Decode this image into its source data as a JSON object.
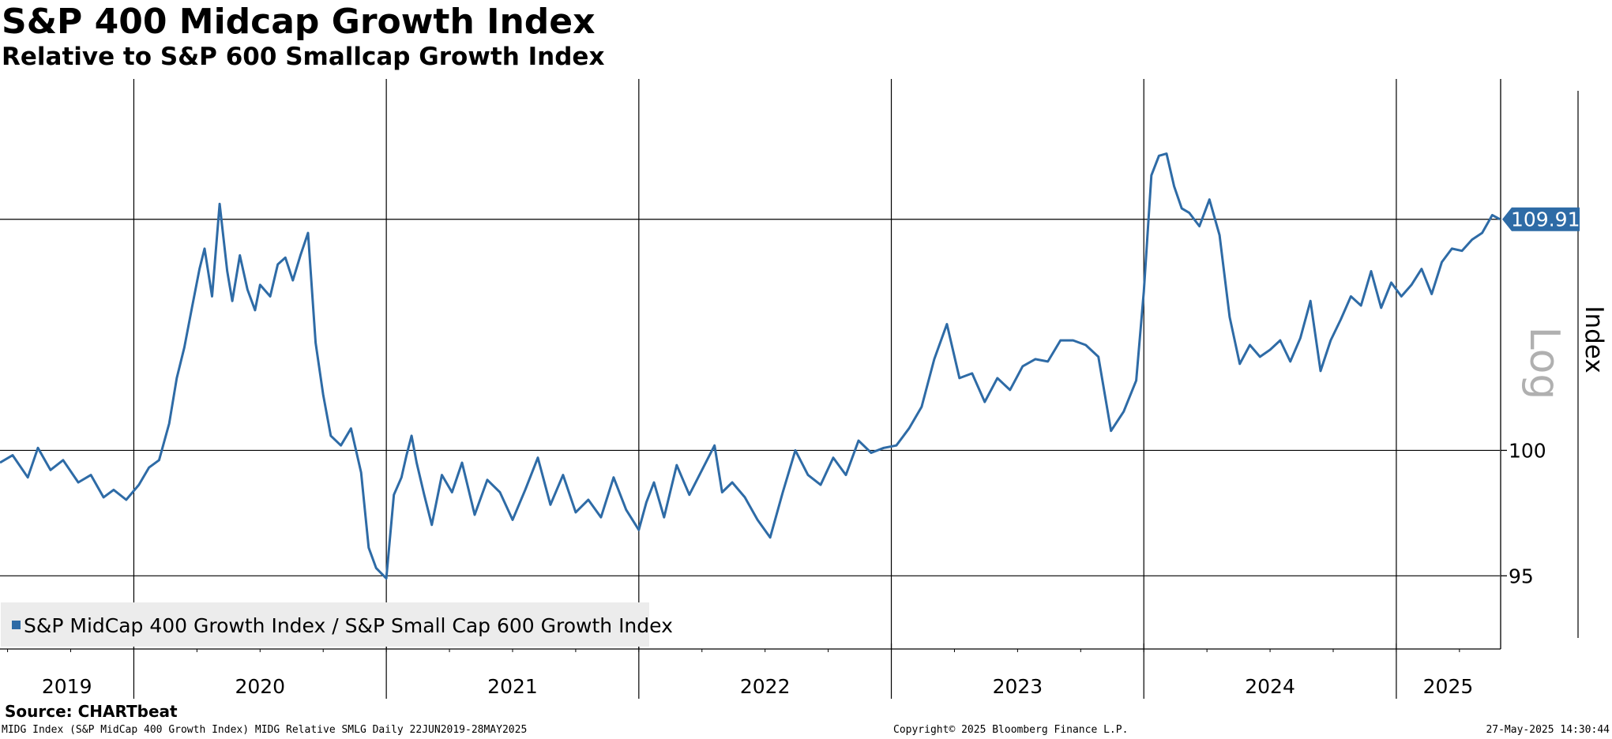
{
  "header": {
    "title": "S&P 400 Midcap Growth Index",
    "subtitle": "Relative to S&P 600 Smallcap Growth Index"
  },
  "footer": {
    "source": "Source: CHARTbeat",
    "left": "MIDG Index (S&P MidCap 400 Growth Index) MIDG Relative SMLG  Daily 22JUN2019-28MAY2025",
    "center": "Copyright© 2025 Bloomberg Finance L.P.",
    "right": "27-May-2025 14:30:44"
  },
  "colors": {
    "series": "#2e6ba6",
    "label_bg": "#2e6ba6",
    "scale_text": "#b0b0b0",
    "legend_bg": "#ececec"
  },
  "chart_data": {
    "type": "line",
    "title": "S&P 400 Midcap Growth Index",
    "subtitle": "Relative to S&P 600 Smallcap Growth Index",
    "ylabel": "Index",
    "scale_label": "Log",
    "yscale": "log",
    "ylim": [
      92.2,
      116.4
    ],
    "yticks": [
      95,
      100
    ],
    "reference_line": 109.91,
    "last_value_label": "109.91",
    "x_range": [
      2019.47,
      2025.41
    ],
    "years": [
      "2019",
      "2020",
      "2021",
      "2022",
      "2023",
      "2024",
      "2025"
    ],
    "year_boundaries": [
      2020.0,
      2021.0,
      2022.0,
      2023.0,
      2024.0,
      2025.0
    ],
    "legend": "S&P MidCap 400 Growth Index / S&P Small Cap 600 Growth Index",
    "series": [
      {
        "name": "S&P MidCap 400 Growth Index / S&P Small Cap 600 Growth Index",
        "x": [
          2019.47,
          2019.52,
          2019.58,
          2019.62,
          2019.67,
          2019.72,
          2019.78,
          2019.83,
          2019.88,
          2019.92,
          2019.97,
          2020.02,
          2020.06,
          2020.1,
          2020.14,
          2020.17,
          2020.2,
          2020.23,
          2020.26,
          2020.28,
          2020.31,
          2020.34,
          2020.37,
          2020.39,
          2020.42,
          2020.45,
          2020.48,
          2020.5,
          2020.54,
          2020.57,
          2020.6,
          2020.63,
          2020.66,
          2020.69,
          2020.72,
          2020.75,
          2020.78,
          2020.82,
          2020.86,
          2020.9,
          2020.93,
          2020.96,
          2021.0,
          2021.03,
          2021.06,
          2021.08,
          2021.1,
          2021.12,
          2021.15,
          2021.18,
          2021.22,
          2021.26,
          2021.3,
          2021.35,
          2021.4,
          2021.45,
          2021.5,
          2021.55,
          2021.6,
          2021.65,
          2021.7,
          2021.75,
          2021.8,
          2021.85,
          2021.9,
          2021.95,
          2022.0,
          2022.03,
          2022.06,
          2022.1,
          2022.15,
          2022.2,
          2022.25,
          2022.3,
          2022.33,
          2022.37,
          2022.42,
          2022.47,
          2022.52,
          2022.57,
          2022.62,
          2022.67,
          2022.72,
          2022.77,
          2022.82,
          2022.87,
          2022.92,
          2022.97,
          2023.02,
          2023.07,
          2023.12,
          2023.17,
          2023.22,
          2023.27,
          2023.32,
          2023.37,
          2023.42,
          2023.47,
          2023.52,
          2023.57,
          2023.62,
          2023.67,
          2023.72,
          2023.77,
          2023.82,
          2023.87,
          2023.92,
          2023.97,
          2024.0,
          2024.03,
          2024.06,
          2024.09,
          2024.12,
          2024.15,
          2024.18,
          2024.22,
          2024.26,
          2024.3,
          2024.34,
          2024.38,
          2024.42,
          2024.46,
          2024.5,
          2024.54,
          2024.58,
          2024.62,
          2024.66,
          2024.7,
          2024.74,
          2024.78,
          2024.82,
          2024.86,
          2024.9,
          2024.94,
          2024.98,
          2025.02,
          2025.06,
          2025.1,
          2025.14,
          2025.18,
          2025.22,
          2025.26,
          2025.3,
          2025.34,
          2025.38,
          2025.41
        ],
        "values": [
          99.5,
          99.8,
          98.9,
          100.1,
          99.2,
          99.6,
          98.7,
          99.0,
          98.1,
          98.4,
          98.0,
          98.6,
          99.3,
          99.6,
          101.1,
          103.0,
          104.3,
          106.0,
          107.7,
          108.6,
          106.5,
          110.6,
          107.6,
          106.3,
          108.3,
          106.8,
          105.9,
          107.0,
          106.5,
          107.9,
          108.2,
          107.2,
          108.3,
          109.3,
          104.5,
          102.3,
          100.6,
          100.2,
          100.9,
          99.1,
          96.1,
          95.3,
          94.9,
          98.2,
          98.9,
          99.8,
          100.6,
          99.5,
          98.2,
          97.0,
          99.0,
          98.3,
          99.5,
          97.4,
          98.8,
          98.3,
          97.2,
          98.4,
          99.7,
          97.8,
          99.0,
          97.5,
          98.0,
          97.3,
          98.9,
          97.6,
          96.8,
          97.9,
          98.7,
          97.3,
          99.4,
          98.2,
          99.2,
          100.2,
          98.3,
          98.7,
          98.1,
          97.2,
          96.5,
          98.3,
          100.0,
          99.0,
          98.6,
          99.7,
          99.0,
          100.4,
          99.9,
          100.1,
          100.2,
          100.9,
          101.8,
          103.8,
          105.3,
          103.0,
          103.2,
          102.0,
          103.0,
          102.5,
          103.5,
          103.8,
          103.7,
          104.6,
          104.6,
          104.4,
          103.9,
          100.8,
          101.6,
          102.9,
          106.7,
          111.9,
          112.8,
          112.9,
          111.4,
          110.4,
          110.2,
          109.6,
          110.8,
          109.2,
          105.6,
          103.6,
          104.4,
          103.9,
          104.2,
          104.6,
          103.7,
          104.7,
          106.3,
          103.3,
          104.6,
          105.5,
          106.5,
          106.1,
          107.6,
          106.0,
          107.1,
          106.5,
          107.0,
          107.7,
          106.6,
          108.0,
          108.6,
          108.5,
          109.0,
          109.3,
          110.1,
          109.91
        ]
      }
    ]
  }
}
